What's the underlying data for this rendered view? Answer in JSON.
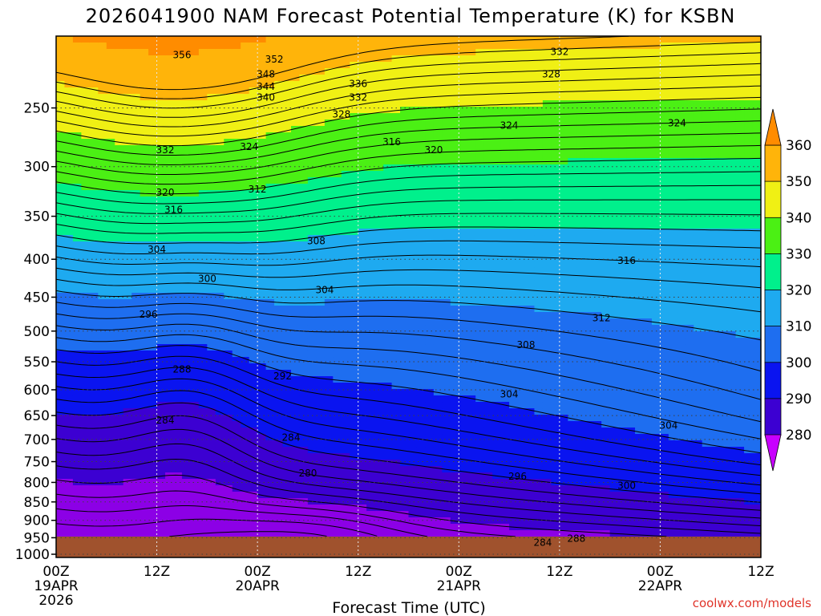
{
  "chart_data": {
    "type": "heatmap",
    "title": "2026041900 NAM Forecast Potential Temperature (K) for KSBN",
    "xlabel": "Forecast Time (UTC)",
    "ylabel": "",
    "credit": "coolwx.com/models",
    "x_axis": {
      "ticks": [
        {
          "hour": 0,
          "label": "00Z",
          "date": "19APR",
          "year": "2026"
        },
        {
          "hour": 12,
          "label": "12Z",
          "date": "",
          "year": ""
        },
        {
          "hour": 24,
          "label": "00Z",
          "date": "20APR",
          "year": ""
        },
        {
          "hour": 36,
          "label": "12Z",
          "date": "",
          "year": ""
        },
        {
          "hour": 48,
          "label": "00Z",
          "date": "21APR",
          "year": ""
        },
        {
          "hour": 60,
          "label": "12Z",
          "date": "",
          "year": ""
        },
        {
          "hour": 72,
          "label": "00Z",
          "date": "22APR",
          "year": ""
        },
        {
          "hour": 84,
          "label": "12Z",
          "date": "",
          "year": ""
        }
      ],
      "range": [
        0,
        84
      ]
    },
    "y_axis": {
      "ticks": [
        "250",
        "300",
        "350",
        "400",
        "450",
        "500",
        "550",
        "600",
        "650",
        "700",
        "750",
        "800",
        "850",
        "900",
        "950",
        "1000"
      ],
      "values": [
        250,
        300,
        350,
        400,
        450,
        500,
        550,
        600,
        650,
        700,
        750,
        800,
        850,
        900,
        950,
        1000
      ],
      "range": [
        200,
        1010
      ],
      "scale": "log-pressure (hPa)"
    },
    "colorbar": {
      "labels": [
        "360",
        "350",
        "340",
        "330",
        "320",
        "310",
        "300",
        "290",
        "280"
      ],
      "levels": [
        280,
        290,
        300,
        310,
        320,
        330,
        340,
        350,
        360
      ],
      "colors": [
        "#c800ff",
        "#8c00e6",
        "#3c00d2",
        "#0a14f0",
        "#1e6ef0",
        "#1eaaf0",
        "#00f08c",
        "#4bf014",
        "#f0f014",
        "#ffb40a",
        "#ff8c00"
      ]
    },
    "contour_labels": [
      {
        "text": "356",
        "h": 15,
        "p": 212
      },
      {
        "text": "352",
        "h": 26,
        "p": 215
      },
      {
        "text": "348",
        "h": 25,
        "p": 225
      },
      {
        "text": "344",
        "h": 25,
        "p": 234
      },
      {
        "text": "340",
        "h": 25,
        "p": 242
      },
      {
        "text": "336",
        "h": 36,
        "p": 232
      },
      {
        "text": "332",
        "h": 36,
        "p": 242
      },
      {
        "text": "328",
        "h": 34,
        "p": 255
      },
      {
        "text": "332",
        "h": 60,
        "p": 210
      },
      {
        "text": "328",
        "h": 59,
        "p": 225
      },
      {
        "text": "324",
        "h": 54,
        "p": 264
      },
      {
        "text": "324",
        "h": 74,
        "p": 262
      },
      {
        "text": "332",
        "h": 13,
        "p": 285
      },
      {
        "text": "324",
        "h": 23,
        "p": 282
      },
      {
        "text": "316",
        "h": 40,
        "p": 278
      },
      {
        "text": "320",
        "h": 45,
        "p": 285
      },
      {
        "text": "320",
        "h": 13,
        "p": 325
      },
      {
        "text": "312",
        "h": 24,
        "p": 322
      },
      {
        "text": "316",
        "h": 14,
        "p": 343
      },
      {
        "text": "308",
        "h": 31,
        "p": 378
      },
      {
        "text": "304",
        "h": 12,
        "p": 388
      },
      {
        "text": "316",
        "h": 68,
        "p": 402
      },
      {
        "text": "300",
        "h": 18,
        "p": 425
      },
      {
        "text": "304",
        "h": 32,
        "p": 440
      },
      {
        "text": "296",
        "h": 11,
        "p": 475
      },
      {
        "text": "312",
        "h": 65,
        "p": 480
      },
      {
        "text": "308",
        "h": 56,
        "p": 522
      },
      {
        "text": "288",
        "h": 15,
        "p": 563
      },
      {
        "text": "292",
        "h": 27,
        "p": 575
      },
      {
        "text": "304",
        "h": 54,
        "p": 608
      },
      {
        "text": "284",
        "h": 13,
        "p": 660
      },
      {
        "text": "304",
        "h": 73,
        "p": 670
      },
      {
        "text": "284",
        "h": 28,
        "p": 696
      },
      {
        "text": "296",
        "h": 55,
        "p": 785
      },
      {
        "text": "280",
        "h": 30,
        "p": 778
      },
      {
        "text": "300",
        "h": 68,
        "p": 808
      },
      {
        "text": "288",
        "h": 62,
        "p": 952
      },
      {
        "text": "284",
        "h": 58,
        "p": 965
      }
    ]
  }
}
